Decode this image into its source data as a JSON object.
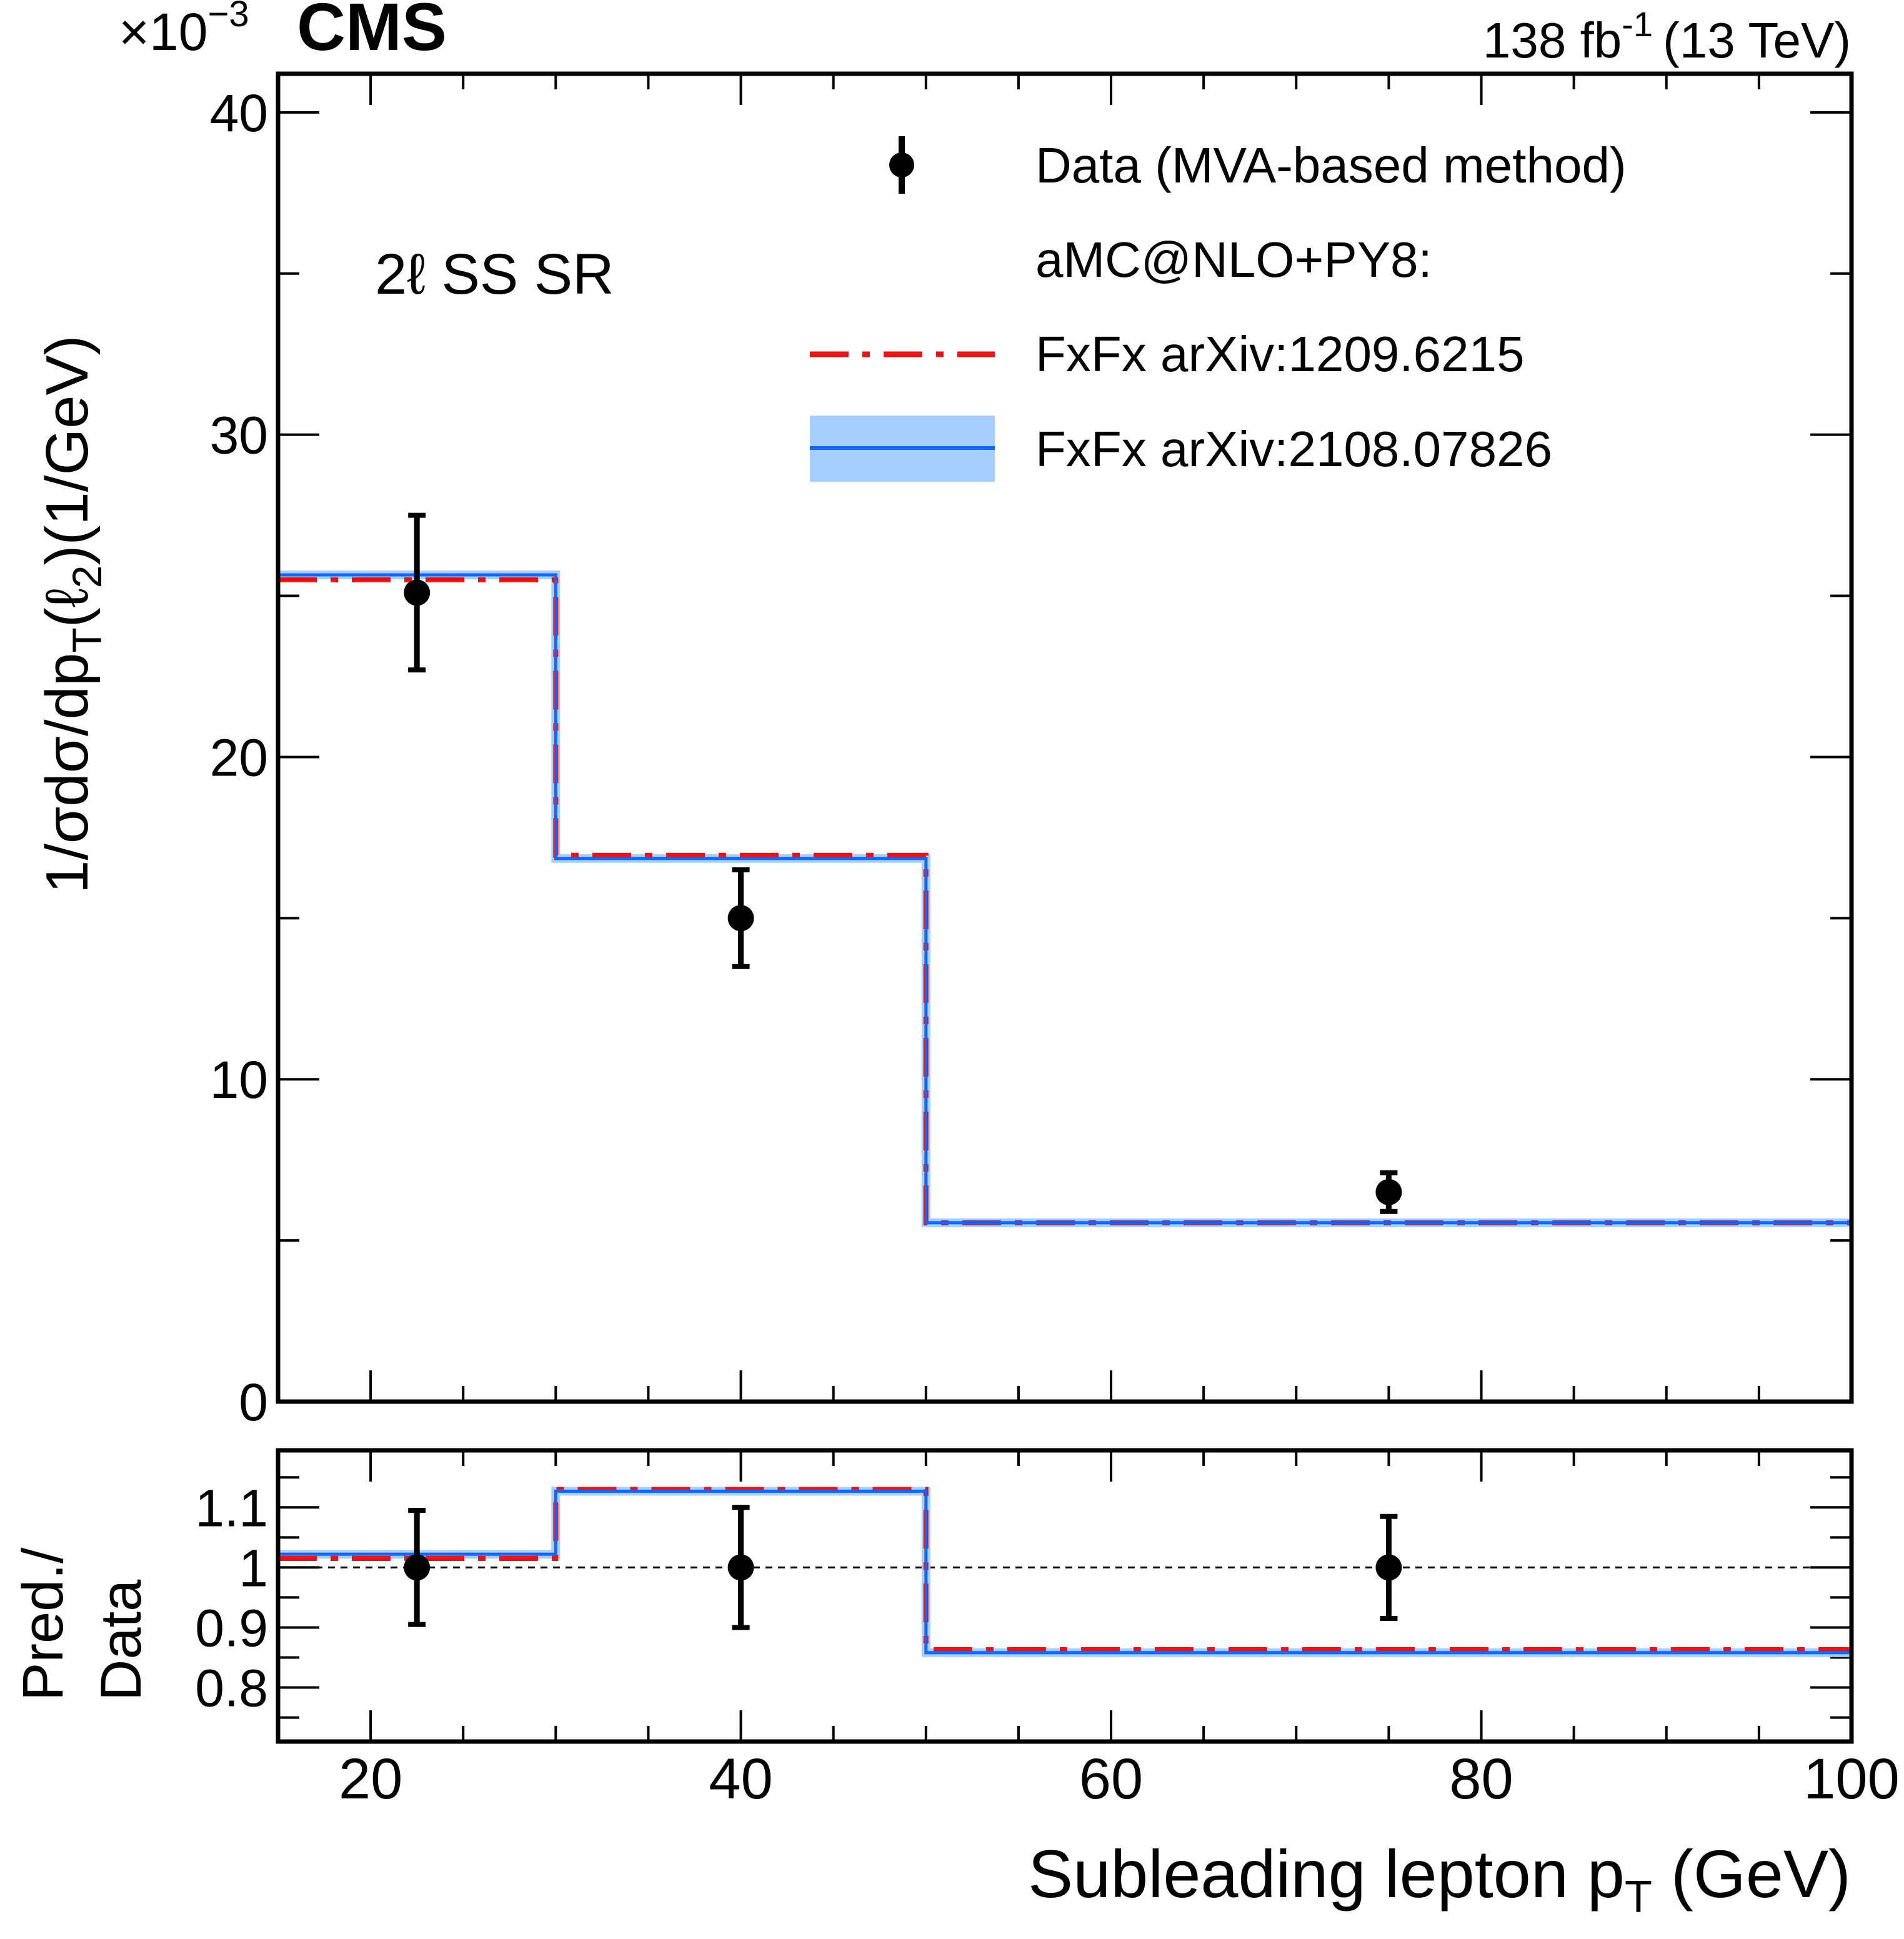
{
  "header": {
    "experiment": "CMS",
    "multiplier_base": "×10",
    "multiplier_exp": "−3",
    "lumi": "138 fb",
    "lumi_exp": "-1",
    "energy": "(13 TeV)",
    "region": "2ℓ SS SR"
  },
  "legend": {
    "data_label": "Data (MVA-based method)",
    "generator_label": "aMC@NLO+PY8:",
    "series1_label": "FxFx arXiv:1209.6215",
    "series2_label": "FxFx arXiv:2108.07826"
  },
  "axes": {
    "ylabel_main": "1/σdσ/dp",
    "ylabel_main_sub": "T",
    "ylabel_main_tail": "(ℓ",
    "ylabel_main_tail_sub": "2",
    "ylabel_main_end": ")(1/GeV)",
    "ylabel_ratio_line1": "Pred./",
    "ylabel_ratio_line2": "Data",
    "xlabel": "Subleading lepton p",
    "xlabel_sub": "T",
    "xlabel_end": " (GeV)"
  },
  "colors": {
    "series1": "#ee1111",
    "series2": "#1166ff",
    "band": "#a6cfff",
    "data": "#000000"
  },
  "chart_data": [
    {
      "type": "histogram",
      "panel": "main",
      "title": "",
      "xlabel": "Subleading lepton pT (GeV)",
      "ylabel": "1/σ dσ/dpT(ℓ2) (1/GeV)",
      "y_scale_factor": 0.001,
      "xlim": [
        15,
        100
      ],
      "ylim": [
        0,
        41.2
      ],
      "xticks": [
        20,
        40,
        60,
        80,
        100
      ],
      "yticks": [
        0,
        10,
        20,
        30,
        40
      ],
      "bin_edges": [
        15,
        30,
        50,
        100
      ],
      "series": [
        {
          "name": "FxFx arXiv:1209.6215",
          "style": "dashed",
          "values": [
            25.5,
            16.95,
            5.55
          ]
        },
        {
          "name": "FxFx arXiv:2108.07826",
          "style": "solid",
          "values": [
            25.65,
            16.85,
            5.55
          ]
        }
      ],
      "data": {
        "name": "Data (MVA-based method)",
        "x": [
          22.5,
          40,
          75
        ],
        "y": [
          25.1,
          15.0,
          6.5
        ],
        "yerr_up": [
          2.4,
          1.5,
          0.6
        ],
        "yerr_down": [
          2.4,
          1.5,
          0.6
        ]
      }
    },
    {
      "type": "histogram",
      "panel": "ratio",
      "xlabel": "Subleading lepton pT (GeV)",
      "ylabel": "Pred./Data",
      "xlim": [
        15,
        100
      ],
      "ylim": [
        0.71,
        1.195
      ],
      "yticks": [
        0.8,
        0.9,
        1,
        1.1
      ],
      "ytick_labels": [
        "0.8",
        "0.9",
        "1",
        "1.1"
      ],
      "reference_line": 1,
      "bin_edges": [
        15,
        30,
        50,
        100
      ],
      "series": [
        {
          "name": "FxFx arXiv:1209.6215",
          "style": "dashed",
          "values": [
            1.015,
            1.13,
            0.863
          ]
        },
        {
          "name": "FxFx arXiv:2108.07826",
          "style": "solid",
          "values": [
            1.022,
            1.127,
            0.858
          ]
        }
      ],
      "data": {
        "x": [
          22.5,
          40,
          75
        ],
        "y": [
          1.0,
          1.0,
          1.0
        ],
        "yerr_up": [
          0.095,
          0.1,
          0.085
        ],
        "yerr_down": [
          0.095,
          0.1,
          0.085
        ]
      }
    }
  ]
}
